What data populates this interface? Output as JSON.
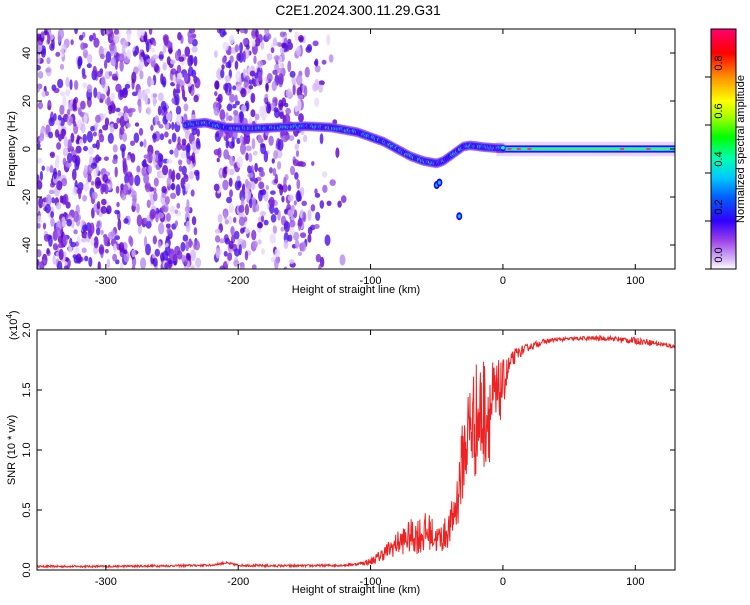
{
  "chart_data": [
    {
      "type": "heatmap",
      "title": "C2E1.2024.300.11.29.G31",
      "xlabel": "Height of straight line (km)",
      "ylabel": "Frequency (Hz)",
      "xlim": [
        -352,
        130
      ],
      "ylim": [
        -50,
        50
      ],
      "x_ticks": [
        -300,
        -200,
        -100,
        0,
        100
      ],
      "y_ticks": [
        -40,
        -20,
        0,
        20,
        40
      ],
      "x_tick_labels": [
        "-300",
        "-200",
        "-100",
        "0",
        "100"
      ],
      "y_tick_labels": [
        "-40",
        "-20",
        "0",
        "20",
        "40"
      ],
      "colorbar": {
        "label": "Normalized spectral amplitude",
        "range": [
          0,
          1
        ],
        "ticks": [
          0.0,
          0.2,
          0.4,
          0.6,
          0.8
        ],
        "tick_labels": [
          "0.0",
          "0.2",
          "0.4",
          "0.6",
          "0.8"
        ],
        "colors": [
          "#ffffff",
          "#c8a0f0",
          "#9040e0",
          "#4000ff",
          "#0060ff",
          "#00d0ff",
          "#00ff80",
          "#00ff00",
          "#c0ff00",
          "#ffff00",
          "#ff8000",
          "#ff0000",
          "#ff0060"
        ]
      },
      "ridge": {
        "x": [
          -240,
          -225,
          -210,
          -190,
          -170,
          -150,
          -130,
          -120,
          -110,
          -100,
          -90,
          -80,
          -70,
          -60,
          -50,
          -45,
          -40,
          -35,
          -30,
          -25,
          -20,
          -15,
          -10,
          -5,
          0,
          20,
          60,
          100,
          130
        ],
        "y": [
          10,
          11,
          9,
          8.5,
          9,
          9.5,
          9,
          8,
          7,
          5,
          3,
          0,
          -3,
          -5,
          -6,
          -5,
          -3,
          -1,
          1,
          1.5,
          1.2,
          0.8,
          0.6,
          0.4,
          0.3,
          0.2,
          0.1,
          0.1,
          0.1
        ]
      },
      "noise_region_x": [
        -352,
        -120
      ]
    },
    {
      "type": "line",
      "title": "",
      "xlabel": "Height of straight line (km)",
      "ylabel": "SNR (10 * v/v)",
      "scale_note": "(x10",
      "scale_exp": "4",
      "scale_close": ")",
      "xlim": [
        -352,
        130
      ],
      "ylim": [
        0,
        2.0
      ],
      "x_ticks": [
        -300,
        -200,
        -100,
        0,
        100
      ],
      "y_ticks": [
        0.0,
        0.5,
        1.0,
        1.5,
        2.0
      ],
      "x_tick_labels": [
        "-300",
        "-200",
        "-100",
        "0",
        "100"
      ],
      "y_tick_labels": [
        "0.0",
        "0.5",
        "1.0",
        "1.5",
        "2.0"
      ],
      "series_color": "#ee2222",
      "envelope": {
        "x": [
          -352,
          -300,
          -250,
          -220,
          -210,
          -200,
          -180,
          -150,
          -120,
          -110,
          -100,
          -95,
          -90,
          -80,
          -70,
          -60,
          -55,
          -50,
          -45,
          -40,
          -35,
          -30,
          -25,
          -20,
          -15,
          -10,
          -5,
          0,
          5,
          10,
          20,
          30,
          40,
          60,
          80,
          90,
          100,
          110,
          120,
          130
        ],
        "y": [
          0.03,
          0.03,
          0.035,
          0.04,
          0.06,
          0.04,
          0.035,
          0.035,
          0.04,
          0.05,
          0.07,
          0.1,
          0.14,
          0.22,
          0.28,
          0.3,
          0.32,
          0.25,
          0.28,
          0.35,
          0.55,
          0.95,
          1.2,
          1.25,
          1.3,
          1.35,
          1.4,
          1.55,
          1.7,
          1.8,
          1.86,
          1.9,
          1.92,
          1.93,
          1.93,
          1.92,
          1.91,
          1.9,
          1.88,
          1.86
        ]
      },
      "noise_amp": {
        "x": [
          -352,
          -110,
          -100,
          -90,
          -80,
          -70,
          -60,
          -50,
          -40,
          -30,
          -25,
          -20,
          -15,
          -10,
          -5,
          0,
          5,
          10,
          20,
          40,
          80,
          100,
          130
        ],
        "y": [
          0.008,
          0.01,
          0.03,
          0.06,
          0.1,
          0.14,
          0.18,
          0.12,
          0.15,
          0.35,
          0.45,
          0.5,
          0.5,
          0.45,
          0.35,
          0.2,
          0.1,
          0.05,
          0.03,
          0.015,
          0.02,
          0.03,
          0.015
        ]
      }
    }
  ]
}
